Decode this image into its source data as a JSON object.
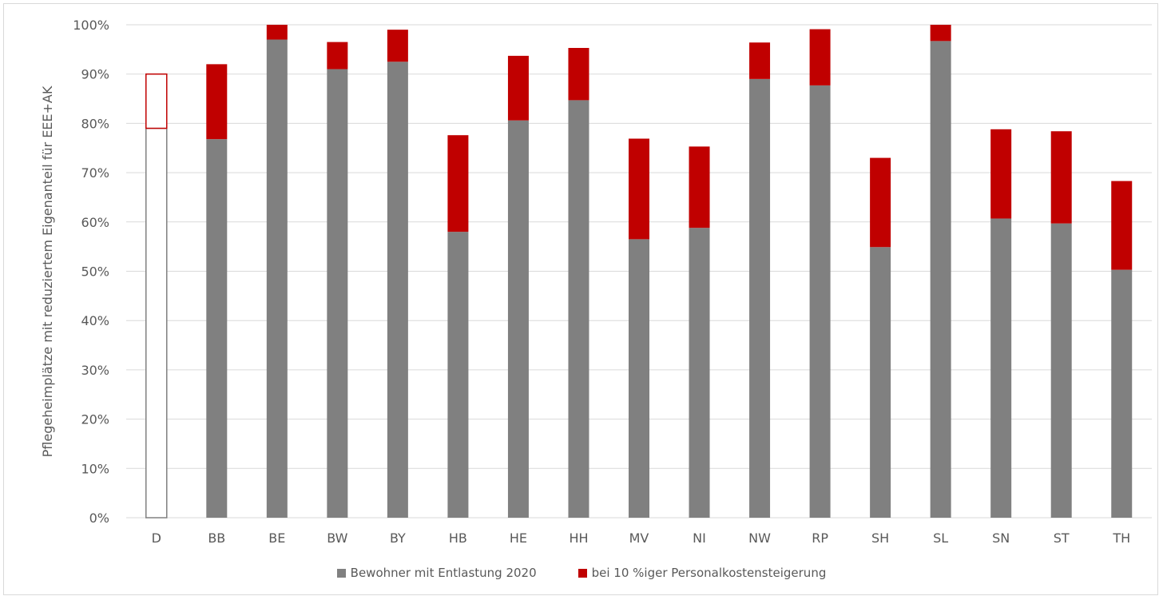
{
  "chart_data": {
    "type": "bar",
    "stacked": true,
    "title": "",
    "xlabel": "",
    "ylabel": "Pflegeheimplätze mit reduziertem Eigenanteil für EEE+AK",
    "ylim": [
      0,
      1
    ],
    "ytick_labels": [
      "0%",
      "10%",
      "20%",
      "30%",
      "40%",
      "50%",
      "60%",
      "70%",
      "80%",
      "90%",
      "100%"
    ],
    "categories": [
      "D",
      "BB",
      "BE",
      "BW",
      "BY",
      "HB",
      "HE",
      "HH",
      "MV",
      "NI",
      "NW",
      "RP",
      "SH",
      "SL",
      "SN",
      "ST",
      "TH"
    ],
    "series": [
      {
        "name": "Bewohner mit Entlastung 2020",
        "color": "#808080",
        "values": [
          0.79,
          0.768,
          0.97,
          0.91,
          0.925,
          0.58,
          0.806,
          0.847,
          0.565,
          0.588,
          0.89,
          0.877,
          0.549,
          0.967,
          0.607,
          0.597,
          0.503
        ]
      },
      {
        "name": "bei 10 %iger Personalkostensteigerung",
        "color": "#c00000",
        "values": [
          0.11,
          0.152,
          0.03,
          0.055,
          0.065,
          0.196,
          0.131,
          0.106,
          0.204,
          0.165,
          0.074,
          0.114,
          0.181,
          0.033,
          0.181,
          0.187,
          0.18
        ]
      }
    ],
    "highlight_category": "D",
    "highlight_style": "outline",
    "grid": true,
    "legend_position": "bottom"
  }
}
